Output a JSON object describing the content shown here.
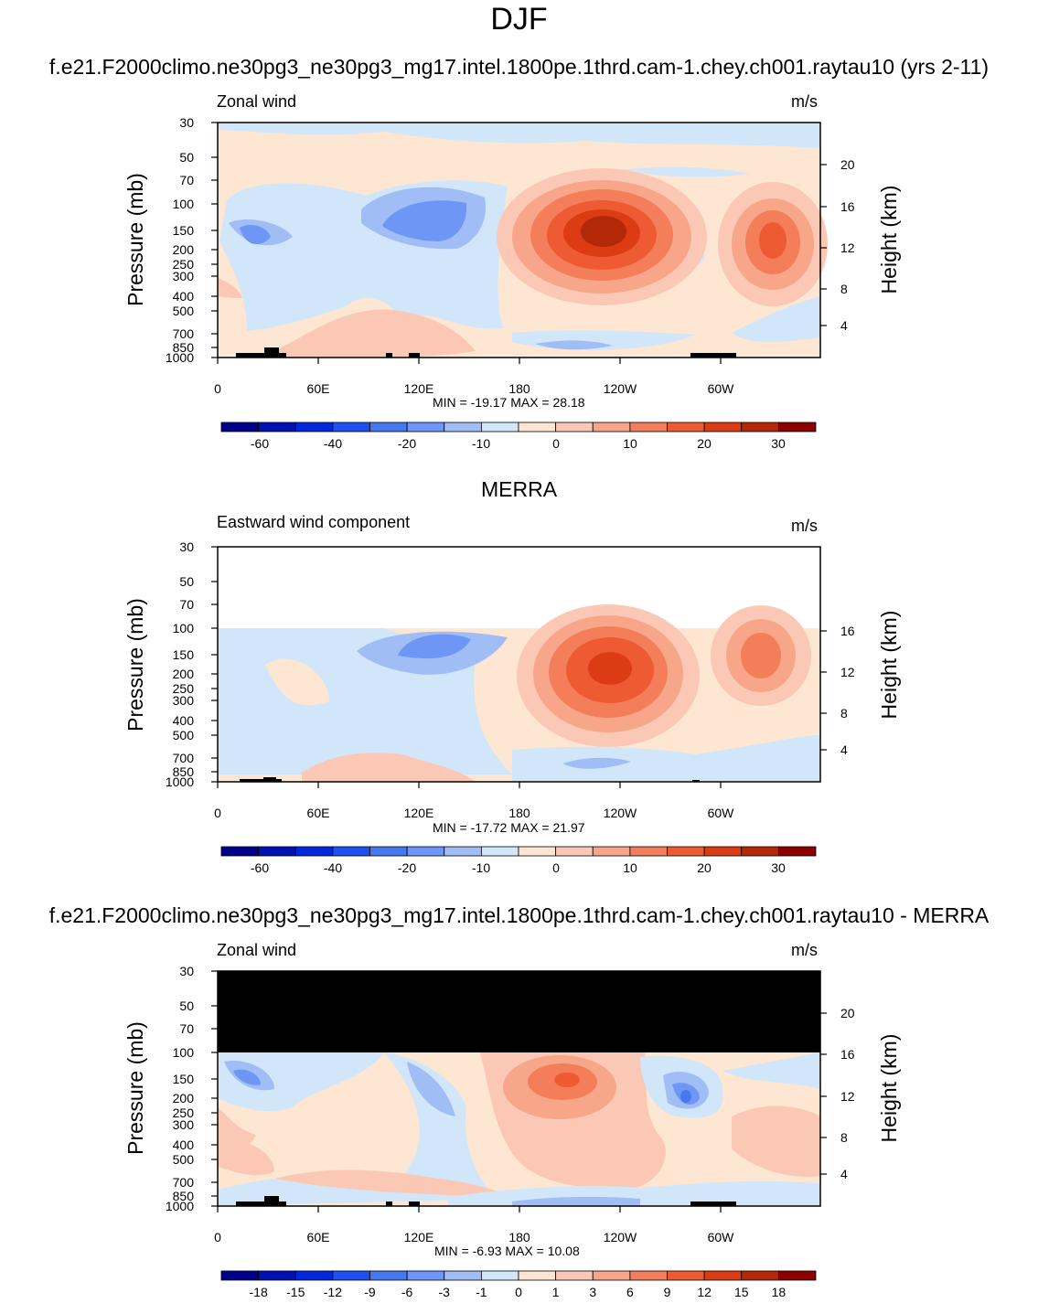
{
  "page": {
    "season": "DJF",
    "case_title": "f.e21.F2000climo.ne30pg3_ne30pg3_mg17.intel.1800pe.1thrd.cam-1.chey.ch001.raytau10 (yrs 2-11)",
    "obs_title": "MERRA",
    "diff_title": "f.e21.F2000climo.ne30pg3_ne30pg3_mg17.intel.1800pe.1thrd.cam-1.chey.ch001.raytau10 - MERRA"
  },
  "colors": {
    "levels_cmap": [
      "#00008c",
      "#0012b4",
      "#0028dc",
      "#1e50f0",
      "#4678f0",
      "#6e96f5",
      "#a0bef5",
      "#d2e6fa",
      "#fde6d2",
      "#fac8b4",
      "#f8a68a",
      "#f47d5a",
      "#ee5a32",
      "#dc3c14",
      "#b4280a",
      "#8c0000"
    ],
    "land": "#000000"
  },
  "chart_data": [
    {
      "type": "contour",
      "panel": "model",
      "var_label": "Zonal wind",
      "units": "m/s",
      "ylabel": "Pressure (mb)",
      "ylabel_right": "Height (km)",
      "yticks": [
        "30",
        "50",
        "70",
        "100",
        "150",
        "200",
        "250",
        "300",
        "400",
        "500",
        "700",
        "850",
        "1000"
      ],
      "yticks_right": [
        "20",
        "16",
        "12",
        "8",
        "4"
      ],
      "xticks": [
        "0",
        "60E",
        "120E",
        "180",
        "120W",
        "60W"
      ],
      "stats": "MIN = -19.17  MAX = 28.18",
      "colorbar_labels": [
        "-60",
        "-40",
        "-20",
        "-10",
        "0",
        "10",
        "20",
        "30"
      ],
      "min": -19.17,
      "max": 28.18,
      "p_top": 30
    },
    {
      "type": "contour",
      "panel": "obs",
      "var_label": "Eastward wind component",
      "units": "m/s",
      "ylabel": "Pressure (mb)",
      "ylabel_right": "Height (km)",
      "yticks": [
        "30",
        "50",
        "70",
        "100",
        "150",
        "200",
        "250",
        "300",
        "400",
        "500",
        "700",
        "850",
        "1000"
      ],
      "yticks_right": [
        "16",
        "12",
        "8",
        "4"
      ],
      "xticks": [
        "0",
        "60E",
        "120E",
        "180",
        "120W",
        "60W"
      ],
      "stats": "MIN = -17.72  MAX = 21.97",
      "colorbar_labels": [
        "-60",
        "-40",
        "-20",
        "-10",
        "0",
        "10",
        "20",
        "30"
      ],
      "min": -17.72,
      "max": 21.97,
      "p_top": 100
    },
    {
      "type": "contour",
      "panel": "diff",
      "var_label": "Zonal wind",
      "units": "m/s",
      "ylabel": "Pressure (mb)",
      "ylabel_right": "Height (km)",
      "yticks": [
        "30",
        "50",
        "70",
        "100",
        "150",
        "200",
        "250",
        "300",
        "400",
        "500",
        "700",
        "850",
        "1000"
      ],
      "yticks_right": [
        "20",
        "16",
        "12",
        "8",
        "4"
      ],
      "xticks": [
        "0",
        "60E",
        "120E",
        "180",
        "120W",
        "60W"
      ],
      "stats": "MIN =  -6.93  MAX = 10.08",
      "colorbar_labels": [
        "-18",
        "-15",
        "-12",
        "-9",
        "-6",
        "-3",
        "-1",
        "0",
        "1",
        "3",
        "6",
        "9",
        "12",
        "15",
        "18"
      ],
      "min": -6.93,
      "max": 10.08,
      "p_top": 100
    }
  ]
}
